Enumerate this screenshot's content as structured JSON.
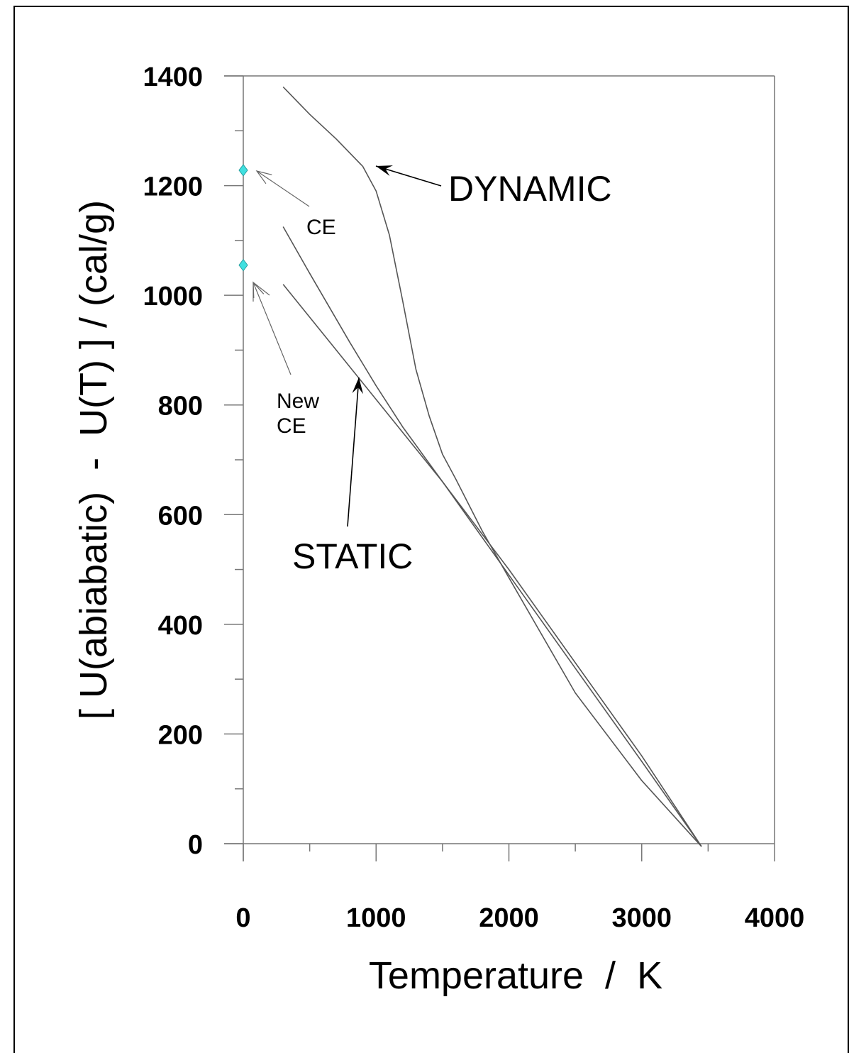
{
  "chart_data": {
    "type": "line",
    "title": "",
    "xlabel": "Temperature  /  K",
    "ylabel": "[ U(abiabatic)  -  U(T) ] / (cal/g)",
    "xlim": [
      0,
      4000
    ],
    "ylim": [
      0,
      1400
    ],
    "xticks": [
      0,
      1000,
      2000,
      3000,
      4000
    ],
    "yticks": [
      0,
      200,
      400,
      600,
      800,
      1000,
      1200,
      1400
    ],
    "grid": false,
    "series": [
      {
        "name": "DYNAMIC",
        "color": "#555555",
        "x": [
          300,
          500,
          700,
          900,
          1000,
          1100,
          1200,
          1300,
          1400,
          1500,
          1600,
          1800,
          2000,
          2500,
          3000,
          3450
        ],
        "y": [
          1380,
          1330,
          1285,
          1235,
          1190,
          1110,
          990,
          865,
          780,
          710,
          665,
          570,
          485,
          275,
          115,
          -5
        ]
      },
      {
        "name": "STATIC",
        "color": "#555555",
        "x": [
          300,
          500,
          800,
          1000,
          1200,
          1500,
          2000,
          2500,
          3000,
          3450
        ],
        "y": [
          1125,
          1040,
          915,
          835,
          760,
          660,
          490,
          320,
          150,
          -5
        ]
      },
      {
        "name": "STATIC",
        "color": "#555555",
        "x": [
          300,
          700,
          1000,
          1500,
          2000,
          2500,
          3000,
          3450
        ],
        "y": [
          1020,
          900,
          810,
          660,
          500,
          330,
          160,
          -5
        ]
      }
    ],
    "points": [
      {
        "label": "CE",
        "x": 0,
        "y": 1228,
        "color": "#40e0e0"
      },
      {
        "label": "New CE",
        "x": 0,
        "y": 1055,
        "color": "#40e0e0"
      }
    ],
    "annotations": {
      "dynamic": "DYNAMIC",
      "static": "STATIC",
      "ce": "CE",
      "new_ce_line1": "New",
      "new_ce_line2": "CE"
    }
  }
}
